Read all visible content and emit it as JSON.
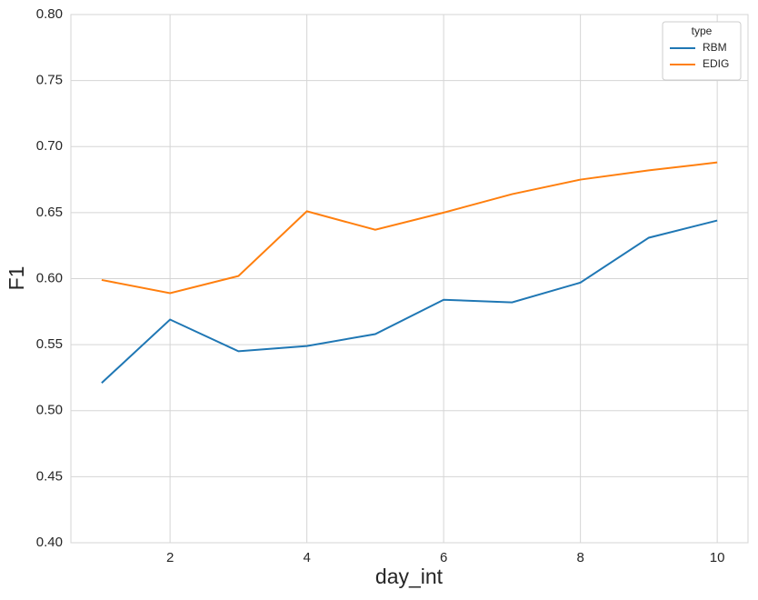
{
  "chart_data": {
    "type": "line",
    "x_label": "day_int",
    "y_label": "F1",
    "x": [
      1,
      2,
      3,
      4,
      5,
      6,
      7,
      8,
      9,
      10
    ],
    "series": [
      {
        "name": "RBM",
        "color": "#1f77b4",
        "values": [
          0.521,
          0.569,
          0.545,
          0.549,
          0.558,
          0.584,
          0.582,
          0.597,
          0.631,
          0.644
        ]
      },
      {
        "name": "EDIG",
        "color": "#ff7f0e",
        "values": [
          0.599,
          0.589,
          0.602,
          0.651,
          0.637,
          0.65,
          0.664,
          0.675,
          0.682,
          0.688
        ]
      }
    ],
    "xlim": [
      0.55,
      10.45
    ],
    "xticks": [
      2,
      4,
      6,
      8,
      10
    ],
    "ylim": [
      0.4,
      0.8
    ],
    "yticks": [
      {
        "value": 0.4,
        "label": "0.40"
      },
      0.45,
      {
        "value": 0.5,
        "label": "0.50"
      },
      0.55,
      {
        "value": 0.6,
        "label": "0.60"
      },
      0.65,
      {
        "value": 0.7,
        "label": "0.70"
      },
      0.75,
      {
        "value": 0.8,
        "label": "0.80"
      }
    ],
    "grid": true,
    "legend_title": "type",
    "legend_loc": "upper right"
  }
}
